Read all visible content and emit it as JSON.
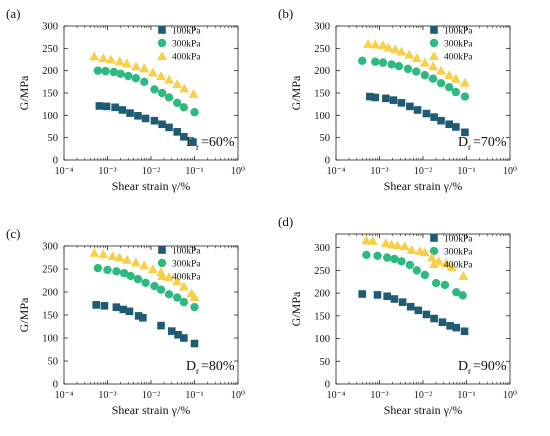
{
  "chart_data": [
    {
      "panel_label": "(a)",
      "type": "scatter",
      "xscale": "log",
      "xlim": [
        0.0001,
        1
      ],
      "ylim": [
        0,
        300
      ],
      "x_ticks": [
        0.0001,
        0.001,
        0.01,
        0.1,
        1
      ],
      "x_tick_labels": [
        "10⁻⁴",
        "10⁻³",
        "10⁻²",
        "10⁻¹",
        "10⁰"
      ],
      "y_ticks": [
        0,
        50,
        100,
        150,
        200,
        250,
        300
      ],
      "y_tick_labels": [
        "0",
        "50",
        "100",
        "150",
        "200",
        "250",
        "300"
      ],
      "xlabel": "Shear strain γ/%",
      "ylabel": "G/MPa",
      "annotation": {
        "base": "D",
        "sub": "r",
        "tail": "=60%"
      },
      "legend_position": "top-right",
      "series": [
        {
          "name": "100kPa",
          "marker": "square",
          "color": "#1f5c73",
          "x": [
            0.00065,
            0.00095,
            0.0015,
            0.0022,
            0.0033,
            0.005,
            0.0075,
            0.012,
            0.018,
            0.026,
            0.04,
            0.057,
            0.092
          ],
          "y": [
            121,
            120,
            118,
            112,
            105,
            99,
            93,
            88,
            80,
            73,
            63,
            52,
            40
          ]
        },
        {
          "name": "300kPa",
          "marker": "circle",
          "color": "#2eb982",
          "x": [
            0.0006,
            0.0009,
            0.0014,
            0.002,
            0.003,
            0.0045,
            0.007,
            0.012,
            0.018,
            0.026,
            0.04,
            0.057,
            0.1
          ],
          "y": [
            200,
            199,
            197,
            193,
            188,
            183,
            175,
            158,
            150,
            140,
            128,
            118,
            107
          ]
        },
        {
          "name": "400kPa",
          "marker": "triangle",
          "color": "#f6d04a",
          "x": [
            0.0005,
            0.0008,
            0.0012,
            0.0019,
            0.0028,
            0.0045,
            0.007,
            0.011,
            0.017,
            0.026,
            0.04,
            0.058,
            0.095
          ],
          "y": [
            232,
            228,
            225,
            221,
            216,
            210,
            205,
            196,
            188,
            180,
            170,
            160,
            148
          ]
        }
      ]
    },
    {
      "panel_label": "(b)",
      "type": "scatter",
      "xscale": "log",
      "xlim": [
        0.0001,
        1
      ],
      "ylim": [
        0,
        300
      ],
      "x_ticks": [
        0.0001,
        0.001,
        0.01,
        0.1,
        1
      ],
      "x_tick_labels": [
        "10⁻⁴",
        "10⁻³",
        "10⁻²",
        "10⁻¹",
        "10⁰"
      ],
      "y_ticks": [
        0,
        50,
        100,
        150,
        200,
        250,
        300
      ],
      "y_tick_labels": [
        "0",
        "50",
        "100",
        "150",
        "200",
        "250",
        "300"
      ],
      "xlabel": "Shear strain γ/%",
      "ylabel": "G/MPa",
      "annotation": {
        "base": "D",
        "sub": "r",
        "tail": "=70%"
      },
      "legend_position": "top-right",
      "series": [
        {
          "name": "100kPa",
          "marker": "square",
          "color": "#1f5c73",
          "x": [
            0.0006,
            0.0008,
            0.0014,
            0.0021,
            0.0032,
            0.005,
            0.0075,
            0.012,
            0.018,
            0.026,
            0.04,
            0.057,
            0.092
          ],
          "y": [
            142,
            140,
            138,
            134,
            128,
            120,
            112,
            104,
            96,
            88,
            80,
            74,
            62
          ]
        },
        {
          "name": "300kPa",
          "marker": "circle",
          "color": "#2eb982",
          "x": [
            0.0004,
            0.0008,
            0.0012,
            0.0019,
            0.0028,
            0.0045,
            0.007,
            0.011,
            0.017,
            0.026,
            0.04,
            0.057,
            0.092
          ],
          "y": [
            222,
            220,
            218,
            214,
            210,
            204,
            198,
            190,
            182,
            172,
            163,
            152,
            142
          ]
        },
        {
          "name": "400kPa",
          "marker": "triangle",
          "color": "#f6d04a",
          "x": [
            0.00055,
            0.0008,
            0.0012,
            0.0016,
            0.0023,
            0.0032,
            0.0048,
            0.0072,
            0.011,
            0.017,
            0.026,
            0.04,
            0.057,
            0.092
          ],
          "y": [
            260,
            259,
            257,
            252,
            248,
            243,
            236,
            228,
            218,
            210,
            200,
            190,
            182,
            173
          ]
        }
      ]
    },
    {
      "panel_label": "(c)",
      "type": "scatter",
      "xscale": "log",
      "xlim": [
        0.0001,
        1
      ],
      "ylim": [
        0,
        300
      ],
      "x_ticks": [
        0.0001,
        0.001,
        0.01,
        0.1,
        1
      ],
      "x_tick_labels": [
        "10⁻⁴",
        "10⁻³",
        "10⁻²",
        "10⁻¹",
        "10⁰"
      ],
      "y_ticks": [
        0,
        50,
        100,
        150,
        200,
        250,
        300
      ],
      "y_tick_labels": [
        "0",
        "50",
        "100",
        "150",
        "200",
        "250",
        "300"
      ],
      "xlabel": "Shear strain γ/%",
      "ylabel": "G/MPa",
      "annotation": {
        "base": "D",
        "sub": "r",
        "tail": "=80%"
      },
      "legend_position": "top-right",
      "series": [
        {
          "name": "100kPa",
          "marker": "square",
          "color": "#1f5c73",
          "x": [
            0.00055,
            0.00085,
            0.0016,
            0.0023,
            0.0032,
            0.0052,
            0.0065,
            0.017,
            0.03,
            0.042,
            0.057,
            0.1
          ],
          "y": [
            172,
            170,
            167,
            162,
            158,
            148,
            144,
            127,
            115,
            107,
            100,
            88
          ]
        },
        {
          "name": "300kPa",
          "marker": "circle",
          "color": "#2eb982",
          "x": [
            0.0006,
            0.001,
            0.0016,
            0.0024,
            0.0034,
            0.005,
            0.0075,
            0.012,
            0.017,
            0.026,
            0.04,
            0.057,
            0.1
          ],
          "y": [
            252,
            248,
            245,
            241,
            235,
            228,
            220,
            213,
            205,
            195,
            188,
            178,
            167
          ]
        },
        {
          "name": "400kPa",
          "marker": "triangle",
          "color": "#f6d04a",
          "x": [
            0.0005,
            0.0008,
            0.0013,
            0.0019,
            0.0028,
            0.0045,
            0.007,
            0.011,
            0.017,
            0.026,
            0.04,
            0.057,
            0.085,
            0.1
          ],
          "y": [
            285,
            282,
            278,
            275,
            270,
            264,
            258,
            250,
            243,
            233,
            223,
            212,
            197,
            189
          ]
        }
      ]
    },
    {
      "panel_label": "(d)",
      "type": "scatter",
      "xscale": "log",
      "xlim": [
        0.0001,
        1
      ],
      "ylim": [
        0,
        330
      ],
      "x_ticks": [
        0.0001,
        0.001,
        0.01,
        0.1,
        1
      ],
      "x_tick_labels": [
        "10⁻⁴",
        "10⁻³",
        "10⁻²",
        "10⁻¹",
        "10⁰"
      ],
      "y_ticks": [
        0,
        50,
        100,
        150,
        200,
        250,
        300
      ],
      "y_tick_labels": [
        "0",
        "50",
        "100",
        "150",
        "200",
        "250",
        "300"
      ],
      "xlabel": "Shear strain γ/%",
      "ylabel": "G/MPa",
      "annotation": {
        "base": "D",
        "sub": "r",
        "tail": "=90%"
      },
      "legend_position": "top-right",
      "series": [
        {
          "name": "100kPa",
          "marker": "square",
          "color": "#1f5c73",
          "x": [
            0.0004,
            0.0009,
            0.0015,
            0.0022,
            0.0034,
            0.0052,
            0.0078,
            0.012,
            0.018,
            0.028,
            0.042,
            0.058,
            0.09
          ],
          "y": [
            198,
            196,
            193,
            187,
            180,
            170,
            162,
            153,
            144,
            136,
            128,
            124,
            116
          ]
        },
        {
          "name": "300kPa",
          "marker": "circle",
          "color": "#2eb982",
          "x": [
            0.0005,
            0.0009,
            0.0015,
            0.0022,
            0.0032,
            0.005,
            0.0072,
            0.011,
            0.02,
            0.032,
            0.058,
            0.082
          ],
          "y": [
            284,
            282,
            278,
            275,
            270,
            262,
            250,
            240,
            222,
            218,
            202,
            195
          ]
        },
        {
          "name": "400kPa",
          "marker": "triangle",
          "color": "#f6d04a",
          "x": [
            0.0005,
            0.0007,
            0.0014,
            0.0019,
            0.0026,
            0.0038,
            0.0055,
            0.0085,
            0.011,
            0.016,
            0.023,
            0.034,
            0.046,
            0.085
          ],
          "y": [
            316,
            315,
            310,
            307,
            305,
            303,
            295,
            293,
            290,
            278,
            270,
            265,
            257,
            238
          ]
        }
      ]
    }
  ]
}
